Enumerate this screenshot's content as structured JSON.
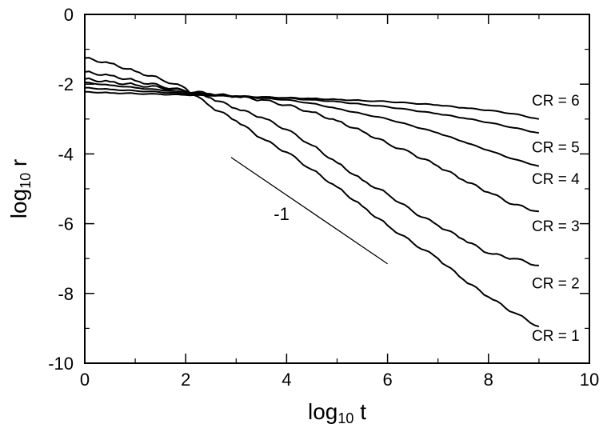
{
  "chart_data": {
    "type": "line",
    "xlabel": {
      "base": "log",
      "sub": "10",
      "var": " t"
    },
    "ylabel": {
      "base": "log",
      "sub": "10",
      "var": " r"
    },
    "xlim": [
      0,
      10
    ],
    "ylim": [
      -10,
      0
    ],
    "x_ticks": [
      0,
      2,
      4,
      6,
      8,
      10
    ],
    "y_ticks": [
      0,
      -2,
      -4,
      -6,
      -8,
      -10
    ],
    "x_tick_labels": [
      "0",
      "2",
      "4",
      "6",
      "8",
      "10"
    ],
    "y_tick_labels": [
      "0",
      "-2",
      "-4",
      "-6",
      "-8",
      "-10"
    ],
    "grid": false,
    "series": [
      {
        "name": "CR = 1",
        "x": [
          0,
          0.5,
          1,
          1.5,
          2,
          2.5,
          3,
          3.5,
          4,
          4.5,
          5,
          5.5,
          6,
          6.5,
          7,
          7.5,
          8,
          8.5,
          9
        ],
        "y": [
          -1.25,
          -1.4,
          -1.63,
          -1.85,
          -2.12,
          -2.65,
          -3.05,
          -3.55,
          -3.95,
          -4.45,
          -4.95,
          -5.5,
          -6.05,
          -6.55,
          -7.0,
          -7.6,
          -8.1,
          -8.55,
          -8.95
        ]
      },
      {
        "name": "CR = 2",
        "x": [
          0,
          0.5,
          1,
          1.5,
          2,
          2.5,
          3,
          3.5,
          4,
          4.5,
          5,
          5.5,
          6,
          6.5,
          7,
          7.5,
          8,
          8.5,
          9
        ],
        "y": [
          -1.65,
          -1.75,
          -1.9,
          -2.05,
          -2.2,
          -2.4,
          -2.7,
          -2.95,
          -3.3,
          -3.75,
          -4.25,
          -4.75,
          -5.15,
          -5.65,
          -6.05,
          -6.45,
          -6.85,
          -7.0,
          -7.2
        ]
      },
      {
        "name": "CR = 3",
        "x": [
          0,
          0.5,
          1,
          1.5,
          2,
          2.5,
          3,
          3.5,
          4,
          4.5,
          5,
          5.5,
          6,
          6.5,
          7,
          7.5,
          8,
          8.5,
          9
        ],
        "y": [
          -1.85,
          -1.93,
          -2.02,
          -2.1,
          -2.2,
          -2.28,
          -2.36,
          -2.45,
          -2.6,
          -2.8,
          -3.05,
          -3.35,
          -3.7,
          -4.0,
          -4.35,
          -4.75,
          -5.1,
          -5.45,
          -5.65
        ]
      },
      {
        "name": "CR = 4",
        "x": [
          0,
          0.5,
          1,
          1.5,
          2,
          2.5,
          3,
          3.5,
          4,
          4.5,
          5,
          5.5,
          6,
          6.5,
          7,
          7.5,
          8,
          8.5,
          9
        ],
        "y": [
          -1.95,
          -2.03,
          -2.1,
          -2.17,
          -2.23,
          -2.3,
          -2.35,
          -2.4,
          -2.45,
          -2.55,
          -2.7,
          -2.85,
          -3.0,
          -3.2,
          -3.4,
          -3.65,
          -3.9,
          -4.15,
          -4.35
        ]
      },
      {
        "name": "CR = 5",
        "x": [
          0,
          0.5,
          1,
          1.5,
          2,
          2.5,
          3,
          3.5,
          4,
          4.5,
          5,
          5.5,
          6,
          6.5,
          7,
          7.5,
          8,
          8.5,
          9
        ],
        "y": [
          -2.1,
          -2.15,
          -2.19,
          -2.23,
          -2.27,
          -2.3,
          -2.34,
          -2.37,
          -2.4,
          -2.45,
          -2.5,
          -2.58,
          -2.65,
          -2.75,
          -2.85,
          -2.97,
          -3.1,
          -3.25,
          -3.4
        ]
      },
      {
        "name": "CR = 6",
        "x": [
          0,
          0.5,
          1,
          1.5,
          2,
          2.5,
          3,
          3.5,
          4,
          4.5,
          5,
          5.5,
          6,
          6.5,
          7,
          7.5,
          8,
          8.5,
          9
        ],
        "y": [
          -2.22,
          -2.25,
          -2.27,
          -2.29,
          -2.31,
          -2.33,
          -2.35,
          -2.37,
          -2.39,
          -2.41,
          -2.44,
          -2.47,
          -2.5,
          -2.55,
          -2.6,
          -2.68,
          -2.75,
          -2.85,
          -3.0
        ]
      }
    ],
    "series_label_y": [
      -9.2,
      -7.7,
      -6.05,
      -4.7,
      -3.8,
      -2.45
    ],
    "reference_line": {
      "label": "-1",
      "x": [
        2.9,
        6.0
      ],
      "y": [
        -4.1,
        -7.15
      ],
      "label_pos": [
        3.9,
        -5.9
      ]
    }
  }
}
